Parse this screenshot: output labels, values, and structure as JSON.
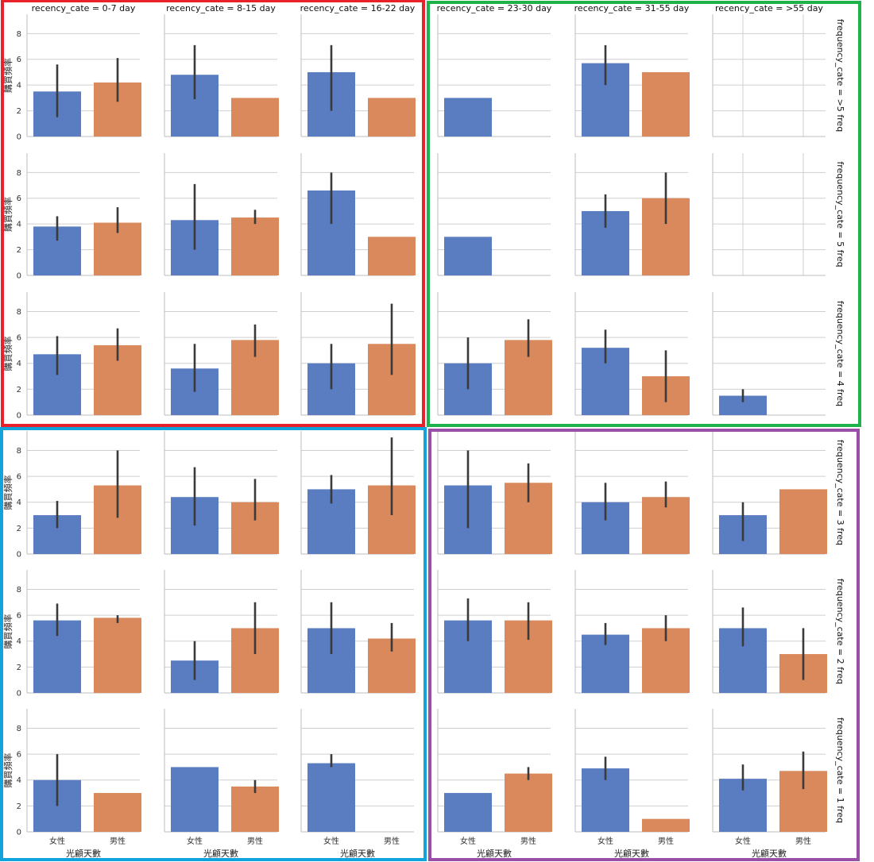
{
  "chart_data": {
    "type": "bar",
    "layout": "facet-grid",
    "col_var_title": "recency_cate",
    "row_var_title": "frequency_cate",
    "col_titles": [
      "recency_cate = 0-7 day",
      "recency_cate = 8-15 day",
      "recency_cate = 16-22 day",
      "recency_cate = 23-30 day",
      "recency_cate = 31-55 day",
      "recency_cate = >55 day"
    ],
    "row_titles": [
      "frequency_cate = >5 freq",
      "frequency_cate = 5 freq",
      "frequency_cate = 4 freq",
      "frequency_cate = 3 freq",
      "frequency_cate = 2 freq",
      "frequency_cate = 1 freq"
    ],
    "categories": [
      "女性",
      "男性"
    ],
    "xlabel": "光顧天數",
    "ylabel": "購買頻率",
    "ylim": [
      0,
      9.5
    ],
    "yticks": [
      0,
      2,
      4,
      6,
      8
    ],
    "colors": {
      "女性": "#5a7dc2",
      "男性": "#d9895b",
      "error": "#3a3a3a"
    },
    "highlight_boxes": [
      {
        "name": "red-box",
        "color": "#e8212b",
        "rows": [
          0,
          2
        ],
        "cols": [
          0,
          2
        ]
      },
      {
        "name": "green-box",
        "color": "#1db34a",
        "rows": [
          0,
          2
        ],
        "cols": [
          3,
          5
        ]
      },
      {
        "name": "blue-box",
        "color": "#12a2dc",
        "rows": [
          3,
          5
        ],
        "cols": [
          0,
          2
        ]
      },
      {
        "name": "purple-box",
        "color": "#9a4fa6",
        "rows": [
          3,
          5
        ],
        "cols": [
          3,
          5
        ]
      }
    ],
    "panels": [
      [
        [
          {
            "v": 3.5,
            "lo": 1.5,
            "hi": 5.6
          },
          {
            "v": 4.2,
            "lo": 2.7,
            "hi": 6.1
          }
        ],
        [
          {
            "v": 4.8,
            "lo": 2.9,
            "hi": 7.1
          },
          {
            "v": 3.0,
            "lo": null,
            "hi": null
          }
        ],
        [
          {
            "v": 5.0,
            "lo": 2.0,
            "hi": 7.1
          },
          {
            "v": 3.0,
            "lo": null,
            "hi": null
          }
        ],
        [
          {
            "v": 3.0,
            "lo": null,
            "hi": null
          },
          null
        ],
        [
          {
            "v": 5.7,
            "lo": 4.0,
            "hi": 7.1
          },
          {
            "v": 5.0,
            "lo": null,
            "hi": null
          }
        ],
        [
          null,
          null
        ]
      ],
      [
        [
          {
            "v": 3.8,
            "lo": 2.7,
            "hi": 4.6
          },
          {
            "v": 4.1,
            "lo": 3.3,
            "hi": 5.3
          }
        ],
        [
          {
            "v": 4.3,
            "lo": 2.0,
            "hi": 7.1
          },
          {
            "v": 4.5,
            "lo": 4.0,
            "hi": 5.1
          }
        ],
        [
          {
            "v": 6.6,
            "lo": 4.0,
            "hi": 8.0
          },
          {
            "v": 3.0,
            "lo": null,
            "hi": null
          }
        ],
        [
          {
            "v": 3.0,
            "lo": null,
            "hi": null
          },
          null
        ],
        [
          {
            "v": 5.0,
            "lo": 3.7,
            "hi": 6.3
          },
          {
            "v": 6.0,
            "lo": 4.0,
            "hi": 8.0
          }
        ],
        [
          null,
          null
        ]
      ],
      [
        [
          {
            "v": 4.7,
            "lo": 3.1,
            "hi": 6.1
          },
          {
            "v": 5.4,
            "lo": 4.2,
            "hi": 6.7
          }
        ],
        [
          {
            "v": 3.6,
            "lo": 1.8,
            "hi": 5.5
          },
          {
            "v": 5.8,
            "lo": 4.5,
            "hi": 7.0
          }
        ],
        [
          {
            "v": 4.0,
            "lo": 2.0,
            "hi": 5.5
          },
          {
            "v": 5.5,
            "lo": 3.1,
            "hi": 8.6
          }
        ],
        [
          {
            "v": 4.0,
            "lo": 2.0,
            "hi": 6.0
          },
          {
            "v": 5.8,
            "lo": 4.5,
            "hi": 7.4
          }
        ],
        [
          {
            "v": 5.2,
            "lo": 4.0,
            "hi": 6.6
          },
          {
            "v": 3.0,
            "lo": 1.0,
            "hi": 5.0
          }
        ],
        [
          {
            "v": 1.5,
            "lo": 1.0,
            "hi": 2.0
          },
          null
        ]
      ],
      [
        [
          {
            "v": 3.0,
            "lo": 2.0,
            "hi": 4.1
          },
          {
            "v": 5.3,
            "lo": 2.8,
            "hi": 8.0
          }
        ],
        [
          {
            "v": 4.4,
            "lo": 2.2,
            "hi": 6.7
          },
          {
            "v": 4.0,
            "lo": 2.6,
            "hi": 5.8
          }
        ],
        [
          {
            "v": 5.0,
            "lo": 3.9,
            "hi": 6.1
          },
          {
            "v": 5.3,
            "lo": 3.0,
            "hi": 9.0
          }
        ],
        [
          {
            "v": 5.3,
            "lo": 2.0,
            "hi": 8.0
          },
          {
            "v": 5.5,
            "lo": 4.0,
            "hi": 7.0
          }
        ],
        [
          {
            "v": 4.0,
            "lo": 2.6,
            "hi": 5.5
          },
          {
            "v": 4.4,
            "lo": 3.6,
            "hi": 5.6
          }
        ],
        [
          {
            "v": 3.0,
            "lo": 1.0,
            "hi": 4.0
          },
          {
            "v": 5.0,
            "lo": null,
            "hi": null
          }
        ]
      ],
      [
        [
          {
            "v": 5.6,
            "lo": 4.4,
            "hi": 6.9
          },
          {
            "v": 5.8,
            "lo": 5.4,
            "hi": 6.0
          }
        ],
        [
          {
            "v": 2.5,
            "lo": 1.0,
            "hi": 4.0
          },
          {
            "v": 5.0,
            "lo": 3.0,
            "hi": 7.0
          }
        ],
        [
          {
            "v": 5.0,
            "lo": 3.0,
            "hi": 7.0
          },
          {
            "v": 4.2,
            "lo": 3.2,
            "hi": 5.4
          }
        ],
        [
          {
            "v": 5.6,
            "lo": 4.0,
            "hi": 7.3
          },
          {
            "v": 5.6,
            "lo": 4.1,
            "hi": 7.0
          }
        ],
        [
          {
            "v": 4.5,
            "lo": 3.7,
            "hi": 5.4
          },
          {
            "v": 5.0,
            "lo": 4.0,
            "hi": 6.0
          }
        ],
        [
          {
            "v": 5.0,
            "lo": 3.6,
            "hi": 6.6
          },
          {
            "v": 3.0,
            "lo": 1.0,
            "hi": 5.0
          }
        ]
      ],
      [
        [
          {
            "v": 4.0,
            "lo": 2.0,
            "hi": 6.0
          },
          {
            "v": 3.0,
            "lo": null,
            "hi": null
          }
        ],
        [
          {
            "v": 5.0,
            "lo": null,
            "hi": null
          },
          {
            "v": 3.5,
            "lo": 3.0,
            "hi": 4.0
          }
        ],
        [
          {
            "v": 5.3,
            "lo": 5.0,
            "hi": 6.0
          },
          null
        ],
        [
          {
            "v": 3.0,
            "lo": null,
            "hi": null
          },
          {
            "v": 4.5,
            "lo": 4.0,
            "hi": 5.0
          }
        ],
        [
          {
            "v": 4.9,
            "lo": 4.0,
            "hi": 5.8
          },
          {
            "v": 1.0,
            "lo": null,
            "hi": null
          }
        ],
        [
          {
            "v": 4.1,
            "lo": 3.2,
            "hi": 5.2
          },
          {
            "v": 4.7,
            "lo": 3.3,
            "hi": 6.2
          }
        ]
      ]
    ]
  }
}
